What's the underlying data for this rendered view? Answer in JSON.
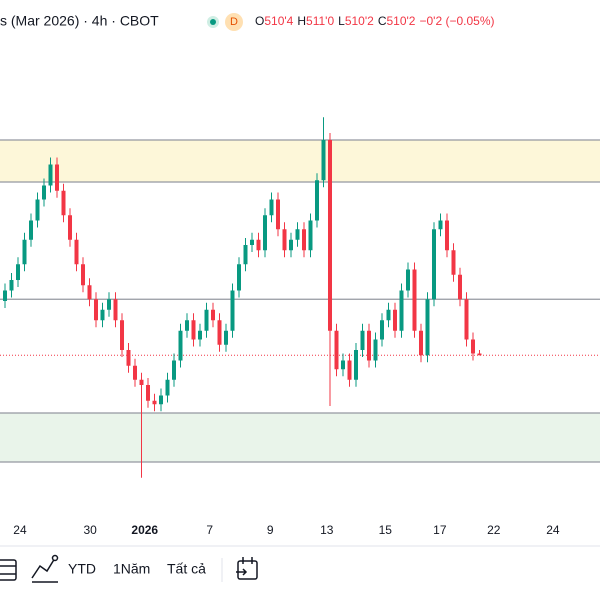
{
  "chart_data": {
    "type": "candlestick",
    "title": "s (Mar 2026) · 4h · CBOT",
    "badge": "D",
    "ohlc_keys": [
      "O",
      "H",
      "L",
      "C"
    ],
    "ohlc_labels": [
      "510'4",
      "511'0",
      "510'2",
      "510'2"
    ],
    "change_label": "−0'2 (−0.05%)",
    "up_color": "#089981",
    "down_color": "#f23645",
    "open": [
      518,
      519.5,
      521,
      523.25,
      526.75,
      529.5,
      532.5,
      534.5,
      537.5,
      533.75,
      530.25,
      526.75,
      523.25,
      520.25,
      518.25,
      515.25,
      516.75,
      518.25,
      515.25,
      511,
      508.75,
      506.75,
      506,
      503.75,
      503.25,
      504.5,
      506.75,
      509.5,
      513.75,
      515.25,
      512.5,
      513.75,
      516.75,
      515.25,
      511.75,
      513.75,
      519.5,
      523.25,
      526,
      526.75,
      525.25,
      530.25,
      532.5,
      528.25,
      525.25,
      526.75,
      528.25,
      525.25,
      529.5,
      535.25,
      541,
      513.75,
      508.25,
      509.5,
      506.75,
      511,
      513.75,
      509.5,
      512.5,
      515.25,
      516.75,
      513.75,
      519.5,
      522.5,
      513.75,
      510.25,
      518.25,
      528.25,
      529.5,
      525.25,
      521.75,
      518.25,
      512.5,
      510.5
    ],
    "high": [
      520.5,
      522,
      524.25,
      527.75,
      530.5,
      533.5,
      535.5,
      538.5,
      538.5,
      534.75,
      531.25,
      527.75,
      524.25,
      521.25,
      519.25,
      517.75,
      519.25,
      519.25,
      516.25,
      512,
      509.75,
      507.75,
      507,
      504.75,
      505.5,
      507.75,
      510.5,
      514.75,
      516.25,
      516.25,
      514.75,
      517.75,
      517.75,
      516.25,
      514.75,
      520.5,
      524.25,
      527,
      527.75,
      527.75,
      531.25,
      533.5,
      533.5,
      529.25,
      527.75,
      529.25,
      529.25,
      530.5,
      536.25,
      544.25,
      542,
      514.75,
      510.5,
      510.5,
      512,
      514.75,
      514.75,
      513.5,
      516.25,
      517.75,
      517.75,
      520.5,
      523.5,
      523.5,
      514.75,
      519.25,
      529.25,
      530.5,
      530.5,
      526.25,
      522.75,
      519.25,
      513.5,
      511
    ],
    "low": [
      517,
      518.5,
      520,
      522.25,
      525.75,
      528.5,
      531.5,
      533.5,
      532.75,
      529.25,
      525.75,
      522.25,
      519.25,
      517.25,
      514.25,
      514.25,
      515.75,
      514.25,
      510,
      507.75,
      505.75,
      492.75,
      502.75,
      502.25,
      502.25,
      503.5,
      505.75,
      508.5,
      512.75,
      511.5,
      511.5,
      512.75,
      514.25,
      510.75,
      510.75,
      512.75,
      518.5,
      522.25,
      525,
      524.25,
      524.25,
      529.25,
      527.25,
      524.25,
      524.25,
      525.75,
      524.25,
      524.25,
      528.5,
      534.25,
      503,
      507.25,
      507.25,
      505.75,
      505.75,
      510,
      508.5,
      508.5,
      511.5,
      514.25,
      512.75,
      512.75,
      518.5,
      512.75,
      509.25,
      509.25,
      517.25,
      527.25,
      524.25,
      520.75,
      517.25,
      511.5,
      509.5,
      510.25
    ],
    "close": [
      519.5,
      521,
      523.25,
      526.75,
      529.5,
      532.5,
      534.5,
      537.5,
      533.75,
      530.25,
      526.75,
      523.25,
      520.25,
      518.25,
      515.25,
      516.75,
      518.25,
      515.25,
      511,
      508.75,
      506.75,
      506,
      503.75,
      503.25,
      504.5,
      506.75,
      509.5,
      513.75,
      515.25,
      512.5,
      513.75,
      516.75,
      515.25,
      511.75,
      513.75,
      519.5,
      523.25,
      526,
      526.75,
      525.25,
      530.25,
      532.5,
      528.25,
      525.25,
      526.75,
      528.25,
      525.25,
      529.5,
      535.25,
      541,
      513.75,
      508.25,
      509.5,
      506.75,
      511,
      513.75,
      509.5,
      512.5,
      515.25,
      516.75,
      513.75,
      519.5,
      522.5,
      513.75,
      510.25,
      518.25,
      528.25,
      529.5,
      525.25,
      521.75,
      518.25,
      512.5,
      510.5,
      510.25
    ],
    "ylim": [
      489,
      561
    ],
    "xlim": [
      -0.77,
      91.54
    ],
    "xticks": [
      {
        "value": 2.3,
        "label": "24"
      },
      {
        "value": 13.1,
        "label": "30"
      },
      {
        "value": 21.5,
        "label": "2026"
      },
      {
        "value": 31.5,
        "label": "7"
      },
      {
        "value": 40.8,
        "label": "9"
      },
      {
        "value": 49.5,
        "label": "13"
      },
      {
        "value": 58.5,
        "label": "15"
      },
      {
        "value": 66.9,
        "label": "17"
      },
      {
        "value": 75.2,
        "label": "22"
      },
      {
        "value": 84.3,
        "label": "24"
      }
    ],
    "zones": [
      {
        "from": 535,
        "to": 541,
        "color": "#fdf7d9"
      },
      {
        "from": 495,
        "to": 502,
        "color": "#e9f4ea"
      }
    ],
    "levels": [
      518.25
    ]
  },
  "toolbar": [
    "YTD",
    "1Năm",
    "Tất cả"
  ]
}
